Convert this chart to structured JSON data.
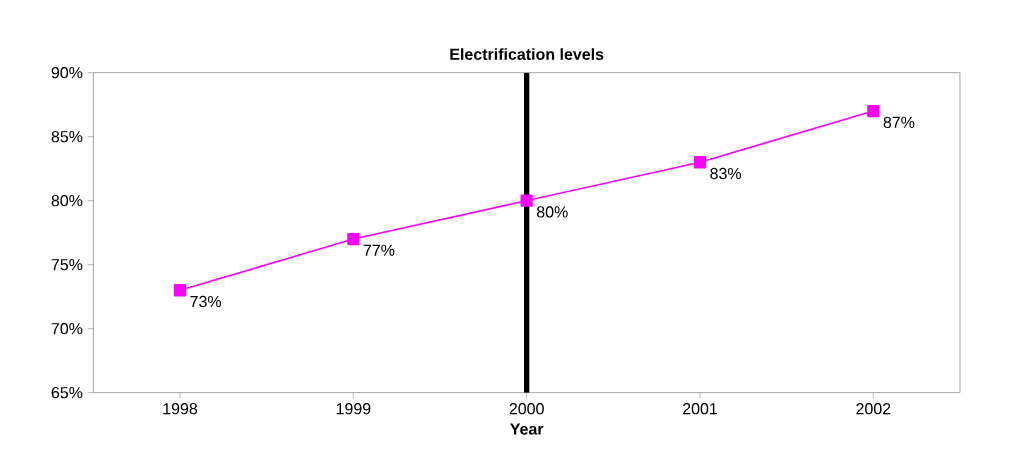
{
  "chart_data": {
    "type": "line",
    "title": "Electrification levels",
    "xlabel": "Year",
    "x": [
      1998,
      1999,
      2000,
      2001,
      2002
    ],
    "series": [
      {
        "color": "#ff00ff",
        "values": [
          73,
          77,
          80,
          83,
          87
        ],
        "value_labels": [
          "73%",
          "77%",
          "80%",
          "83%",
          "87%"
        ]
      }
    ],
    "xlim": [
      1997.5,
      2002.5
    ],
    "xticks": [
      1998,
      1999,
      2000,
      2001,
      2002
    ],
    "ylim": [
      65,
      90
    ],
    "yticks": [
      {
        "value": 65,
        "label": "65%"
      },
      {
        "value": 70,
        "label": "70%"
      },
      {
        "value": 75,
        "label": "75%"
      },
      {
        "value": 80,
        "label": "80%"
      },
      {
        "value": 85,
        "label": "85%"
      },
      {
        "value": 90,
        "label": "90%"
      }
    ],
    "ref_lines": [
      {
        "axis": "x",
        "value": 2000,
        "color": "#000000"
      }
    ],
    "marker": "square",
    "line_style": "solid",
    "grid": false
  }
}
